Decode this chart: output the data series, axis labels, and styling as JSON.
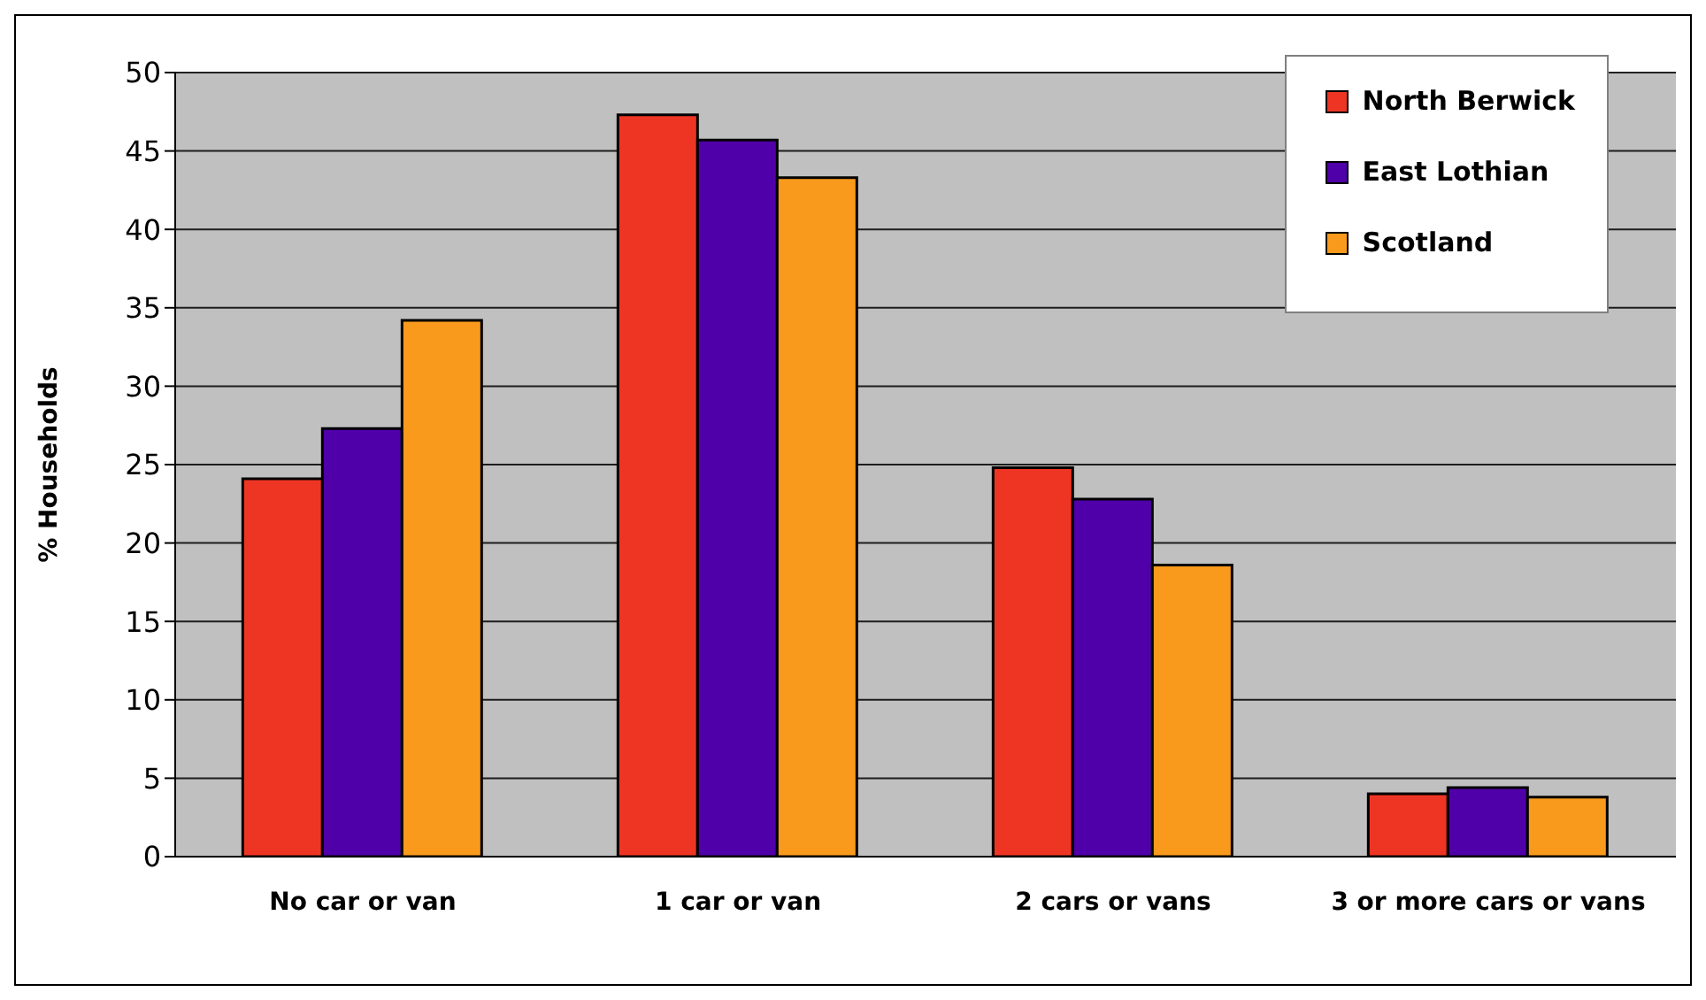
{
  "chart_data": {
    "type": "bar",
    "ylabel": "% Households",
    "categories": [
      "No car or van",
      "1 car or van",
      "2 cars or vans",
      "3 or more cars or vans"
    ],
    "series": [
      {
        "name": "North Berwick",
        "color": "#ee3524",
        "values": [
          24.1,
          47.3,
          24.8,
          4.0
        ]
      },
      {
        "name": "East Lothian",
        "color": "#5000a8",
        "values": [
          27.3,
          45.7,
          22.8,
          4.4
        ]
      },
      {
        "name": "Scotland",
        "color": "#f99a1c",
        "values": [
          34.2,
          43.3,
          18.6,
          3.8
        ]
      }
    ],
    "ylim": [
      0,
      50
    ],
    "yticks": [
      0,
      5,
      10,
      15,
      20,
      25,
      30,
      35,
      40,
      45,
      50
    ],
    "grid": "y",
    "legend": "top right"
  }
}
